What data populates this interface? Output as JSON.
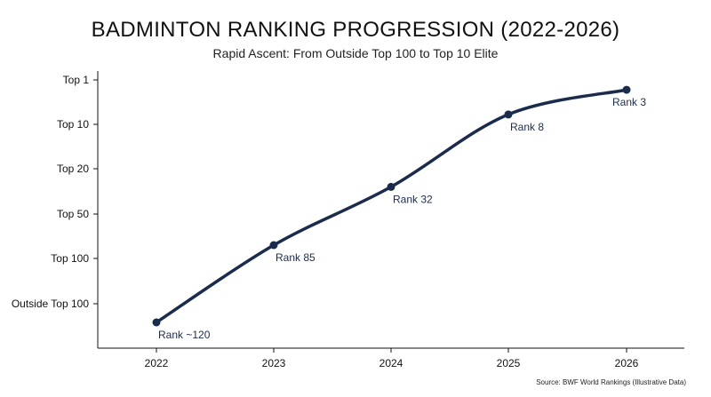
{
  "chart_data": {
    "type": "line",
    "title": "BADMINTON RANKING PROGRESSION (2022-2026)",
    "subtitle": "Rapid Ascent: From Outside Top 100 to Top 10 Elite",
    "x": [
      "2022",
      "2023",
      "2024",
      "2025",
      "2026"
    ],
    "y_ticks": [
      "Top 1",
      "Top 10",
      "Top 20",
      "Top 50",
      "Top 100",
      "Outside Top 100"
    ],
    "series": [
      {
        "values": [
          120,
          85,
          32,
          8,
          3
        ],
        "labels": [
          "Rank ~120",
          "Rank 85",
          "Rank 32",
          "Rank 8",
          "Rank 3"
        ]
      }
    ],
    "color": "#1a2b4c",
    "grid": false,
    "source": "Source: BWF World Rankings (Illustrative Data)"
  }
}
